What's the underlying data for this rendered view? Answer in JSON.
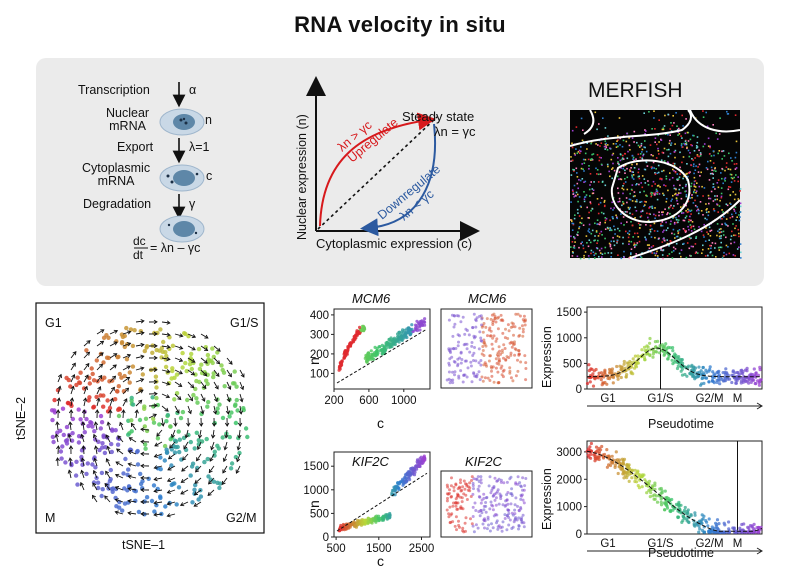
{
  "title": "RNA velocity in situ",
  "model": {
    "transcription": "Transcription",
    "alpha": "α",
    "nuclear_mrna": "Nuclear\nmRNA",
    "n": "n",
    "export": "Export",
    "lambda": "λ=1",
    "cytoplasmic_mrna": "Cytoplasmic\nmRNA",
    "c": "c",
    "degradation": "Degradation",
    "gamma": "γ",
    "eq_num": "dc",
    "eq_den": "dt",
    "eq_rhs": "= λn – γc"
  },
  "phase": {
    "ylabel": "Nuclear expression (n)",
    "xlabel": "Cytoplasmic expression (c)",
    "steady": "Steady state",
    "steady_eq": "λn = γc",
    "up_cond": "λn > γc",
    "up_word": "Upregulate",
    "down_word": "Downregulate",
    "down_cond": "λn < γc",
    "up_color": "#d7191c",
    "down_color": "#2c5aa0"
  },
  "merfish": {
    "title": "MERFISH"
  },
  "tsne": {
    "ylabel": "tSNE–2",
    "xlabel": "tSNE–1",
    "g1": "G1",
    "g1s": "G1/S",
    "m": "M",
    "g2m": "G2/M"
  },
  "phase_colors": {
    "G1": "#e0292e",
    "G1S": "#b9d83a",
    "S": "#3cc46a",
    "G2M": "#2f7fcf",
    "M": "#a03ed1"
  },
  "chart_data": [
    {
      "type": "scatter",
      "title": "MCM6",
      "xlabel": "c",
      "ylabel": "n",
      "xticks": [
        "200",
        "600",
        "1000"
      ],
      "yticks": [
        "100",
        "200",
        "300",
        "400"
      ],
      "xlim": [
        200,
        1300
      ],
      "ylim": [
        20,
        430
      ]
    },
    {
      "type": "scatter",
      "title": "MCM6",
      "note": "spatial"
    },
    {
      "type": "scatter",
      "xlabel": "Pseudotime",
      "ylabel": "Expression",
      "xticks": [
        "G1",
        "G1/S",
        "G2/M",
        "M"
      ],
      "yticks": [
        "0",
        "500",
        "1000",
        "1500"
      ],
      "ylim": [
        0,
        1600
      ]
    },
    {
      "type": "scatter",
      "title": "KIF2C",
      "xlabel": "c",
      "ylabel": "n",
      "xticks": [
        "500",
        "1500",
        "2500"
      ],
      "yticks": [
        "0",
        "500",
        "1000",
        "1500"
      ],
      "xlim": [
        450,
        2700
      ],
      "ylim": [
        0,
        1800
      ]
    },
    {
      "type": "scatter",
      "title": "KIF2C",
      "note": "spatial"
    },
    {
      "type": "scatter",
      "xlabel": "Pseudotime",
      "ylabel": "Expression",
      "xticks": [
        "G1",
        "G1/S",
        "G2/M",
        "M"
      ],
      "yticks": [
        "0",
        "1000",
        "2000",
        "3000"
      ],
      "ylim": [
        0,
        3400
      ]
    }
  ]
}
